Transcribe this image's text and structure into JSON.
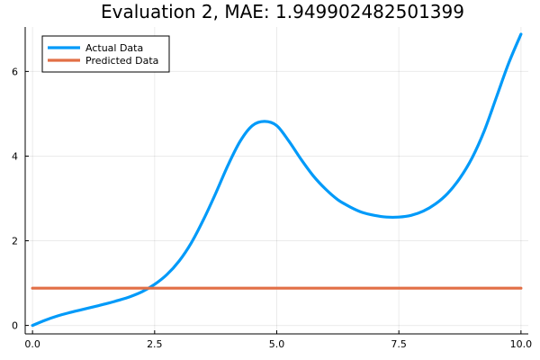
{
  "chart_data": {
    "type": "line",
    "title": "Evaluation 2, MAE: 1.949902482501399",
    "xlabel": "",
    "ylabel": "",
    "xlim": [
      -0.15,
      10.15
    ],
    "ylim": [
      -0.2,
      7.05
    ],
    "x_ticks": [
      0.0,
      2.5,
      5.0,
      7.5,
      10.0
    ],
    "x_tick_labels": [
      "0.0",
      "2.5",
      "5.0",
      "7.5",
      "10.0"
    ],
    "y_ticks": [
      0,
      2,
      4,
      6
    ],
    "y_tick_labels": [
      "0",
      "2",
      "4",
      "6"
    ],
    "grid": true,
    "legend_position": "top-left",
    "series": [
      {
        "name": "Actual Data",
        "color": "#009af9",
        "x": [
          0.0,
          0.25,
          0.5,
          0.75,
          1.0,
          1.25,
          1.5,
          1.75,
          2.0,
          2.25,
          2.5,
          2.75,
          3.0,
          3.25,
          3.5,
          3.75,
          4.0,
          4.25,
          4.5,
          4.75,
          5.0,
          5.25,
          5.5,
          5.75,
          6.0,
          6.25,
          6.5,
          6.75,
          7.0,
          7.25,
          7.5,
          7.75,
          8.0,
          8.25,
          8.5,
          8.75,
          9.0,
          9.25,
          9.5,
          9.75,
          10.0
        ],
        "y": [
          0.0,
          0.12,
          0.22,
          0.3,
          0.37,
          0.44,
          0.51,
          0.59,
          0.68,
          0.8,
          0.97,
          1.2,
          1.52,
          1.95,
          2.5,
          3.12,
          3.78,
          4.35,
          4.72,
          4.82,
          4.72,
          4.35,
          3.92,
          3.53,
          3.22,
          2.97,
          2.8,
          2.67,
          2.6,
          2.56,
          2.56,
          2.6,
          2.7,
          2.87,
          3.12,
          3.48,
          3.96,
          4.6,
          5.4,
          6.2,
          6.88
        ]
      },
      {
        "name": "Predicted Data",
        "color": "#e26f46",
        "x": [
          0.0,
          10.0
        ],
        "y": [
          0.88,
          0.88
        ]
      }
    ]
  }
}
